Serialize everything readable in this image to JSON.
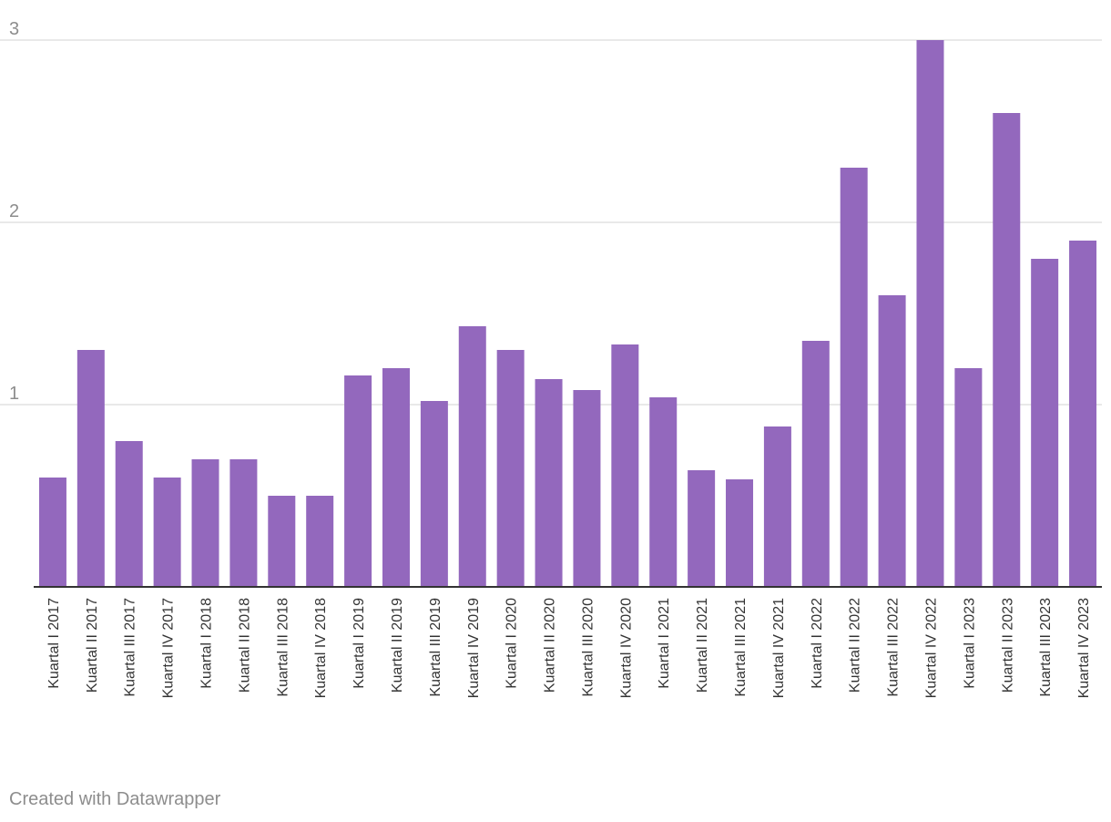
{
  "chart_data": {
    "type": "bar",
    "title": "",
    "xlabel": "",
    "ylabel": "",
    "ylim": [
      0,
      3
    ],
    "yticks": [
      1,
      2,
      3
    ],
    "grid": true,
    "bar_color": "#9368bd",
    "categories": [
      "Kuartal I 2017",
      "Kuartal II 2017",
      "Kuartal III 2017",
      "Kuartal IV 2017",
      "Kuartal I 2018",
      "Kuartal II 2018",
      "Kuartal III 2018",
      "Kuartal IV 2018",
      "Kuartal I 2019",
      "Kuartal II 2019",
      "Kuartal III 2019",
      "Kuartal IV 2019",
      "Kuartal I 2020",
      "Kuartal II 2020",
      "Kuartal III 2020",
      "Kuartal IV 2020",
      "Kuartal I 2021",
      "Kuartal II 2021",
      "Kuartal III 2021",
      "Kuartal IV 2021",
      "Kuartal I 2022",
      "Kuartal II 2022",
      "Kuartal III 2022",
      "Kuartal IV 2022",
      "Kuartal I 2023",
      "Kuartal II 2023",
      "Kuartal III 2023",
      "Kuartal IV 2023"
    ],
    "values": [
      0.6,
      1.3,
      0.8,
      0.6,
      0.7,
      0.7,
      0.5,
      0.5,
      1.16,
      1.2,
      1.02,
      1.43,
      1.3,
      1.14,
      1.08,
      1.33,
      1.04,
      0.64,
      0.59,
      0.88,
      1.35,
      2.3,
      1.6,
      3.0,
      1.2,
      2.6,
      1.8,
      1.9
    ]
  },
  "footer": {
    "credit": "Created with Datawrapper"
  }
}
